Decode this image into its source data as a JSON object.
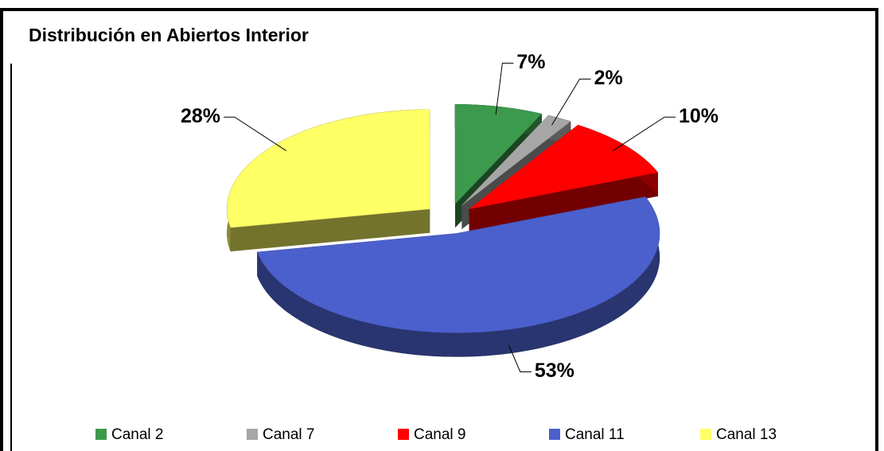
{
  "chart_data": {
    "type": "pie",
    "title": "Distribución en Abiertos Interior",
    "categories": [
      "Canal 2",
      "Canal 7",
      "Canal 9",
      "Canal 11",
      "Canal 13"
    ],
    "values": [
      7,
      2,
      10,
      53,
      28
    ],
    "value_labels": [
      "7%",
      "2%",
      "10%",
      "53%",
      "28%"
    ],
    "colors": [
      "#3c9a4c",
      "#a6a6a6",
      "#ff0000",
      "#4b60cc",
      "#ffff66"
    ],
    "legend": "bottom"
  }
}
